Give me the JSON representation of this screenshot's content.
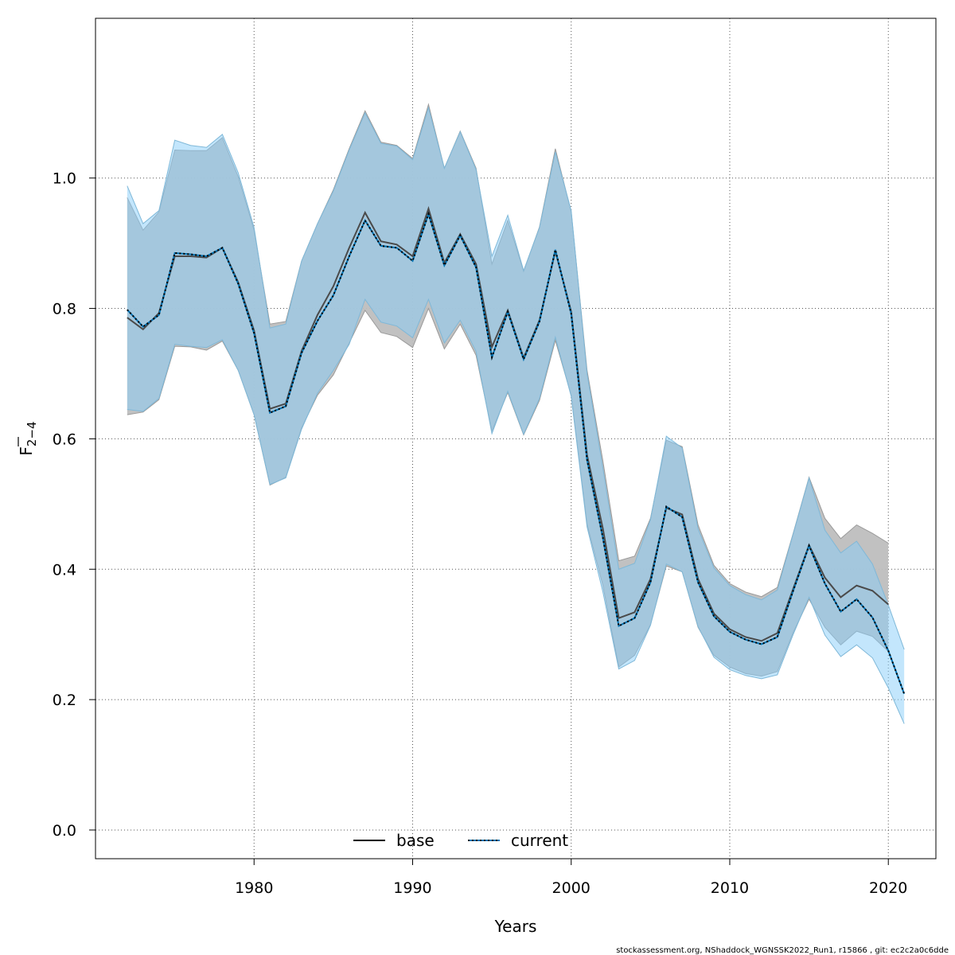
{
  "chart_data": {
    "type": "line",
    "xlabel": "Years",
    "ylabel_main": "F",
    "ylabel_sub": "2−4",
    "xlim": [
      1970,
      2023
    ],
    "ylim": [
      -0.044,
      1.245
    ],
    "xticks": [
      1980,
      1990,
      2000,
      2010,
      2020
    ],
    "yticks": [
      0.0,
      0.2,
      0.4,
      0.6,
      0.8,
      1.0
    ],
    "ytick_labels": [
      "0.0",
      "0.2",
      "0.4",
      "0.6",
      "0.8",
      "1.0"
    ],
    "grid": true,
    "legend_position": "bottom-center",
    "footer": "stockassessment.org, NShaddock_WGNSSK2022_Run1, r15866 , git: ec2c2a0c6dde",
    "colors": {
      "base_band": "#BEBEBE",
      "current_band": "#87CEFA",
      "base_line": "#000000",
      "current_line": "#000000",
      "current_line_under": "#0072B2"
    },
    "series": [
      {
        "name": "base",
        "style": "solid",
        "x": [
          1972,
          1973,
          1974,
          1975,
          1976,
          1977,
          1978,
          1979,
          1980,
          1981,
          1982,
          1983,
          1984,
          1985,
          1986,
          1987,
          1988,
          1989,
          1990,
          1991,
          1992,
          1993,
          1994,
          1995,
          1996,
          1997,
          1998,
          1999,
          2000,
          2001,
          2002,
          2003,
          2004,
          2005,
          2006,
          2007,
          2008,
          2009,
          2010,
          2011,
          2012,
          2013,
          2014,
          2015,
          2016,
          2017,
          2018,
          2019,
          2020
        ],
        "values": [
          0.786,
          0.768,
          0.793,
          0.88,
          0.88,
          0.878,
          0.893,
          0.84,
          0.766,
          0.646,
          0.654,
          0.735,
          0.79,
          0.834,
          0.893,
          0.947,
          0.903,
          0.898,
          0.88,
          0.953,
          0.87,
          0.914,
          0.868,
          0.741,
          0.797,
          0.724,
          0.782,
          0.888,
          0.795,
          0.575,
          0.462,
          0.325,
          0.334,
          0.385,
          0.494,
          0.484,
          0.385,
          0.332,
          0.308,
          0.296,
          0.29,
          0.302,
          0.37,
          0.437,
          0.387,
          0.357,
          0.375,
          0.367,
          0.346
        ],
        "lower": [
          0.637,
          0.641,
          0.66,
          0.742,
          0.741,
          0.736,
          0.75,
          0.705,
          0.637,
          0.529,
          0.541,
          0.617,
          0.667,
          0.698,
          0.747,
          0.797,
          0.763,
          0.757,
          0.74,
          0.8,
          0.738,
          0.776,
          0.728,
          0.612,
          0.671,
          0.606,
          0.659,
          0.751,
          0.667,
          0.469,
          0.375,
          0.25,
          0.268,
          0.315,
          0.405,
          0.396,
          0.311,
          0.268,
          0.25,
          0.24,
          0.236,
          0.243,
          0.303,
          0.354,
          0.311,
          0.284,
          0.305,
          0.297,
          0.274
        ],
        "upper": [
          0.97,
          0.92,
          0.948,
          1.043,
          1.042,
          1.042,
          1.062,
          1.002,
          0.92,
          0.776,
          0.78,
          0.873,
          0.93,
          0.982,
          1.045,
          1.103,
          1.055,
          1.05,
          1.03,
          1.113,
          1.015,
          1.072,
          1.015,
          0.868,
          0.935,
          0.857,
          0.925,
          1.045,
          0.948,
          0.705,
          0.566,
          0.413,
          0.42,
          0.478,
          0.598,
          0.588,
          0.468,
          0.406,
          0.378,
          0.365,
          0.358,
          0.372,
          0.455,
          0.541,
          0.478,
          0.447,
          0.468,
          0.455,
          0.44
        ]
      },
      {
        "name": "current",
        "style": "dotted",
        "x": [
          1972,
          1973,
          1974,
          1975,
          1976,
          1977,
          1978,
          1979,
          1980,
          1981,
          1982,
          1983,
          1984,
          1985,
          1986,
          1987,
          1988,
          1989,
          1990,
          1991,
          1992,
          1993,
          1994,
          1995,
          1996,
          1997,
          1998,
          1999,
          2000,
          2001,
          2002,
          2003,
          2004,
          2005,
          2006,
          2007,
          2008,
          2009,
          2010,
          2011,
          2012,
          2013,
          2014,
          2015,
          2016,
          2017,
          2018,
          2019,
          2020,
          2021
        ],
        "values": [
          0.798,
          0.772,
          0.79,
          0.885,
          0.883,
          0.88,
          0.893,
          0.838,
          0.762,
          0.64,
          0.65,
          0.732,
          0.781,
          0.82,
          0.88,
          0.935,
          0.896,
          0.893,
          0.873,
          0.945,
          0.866,
          0.912,
          0.863,
          0.725,
          0.795,
          0.722,
          0.78,
          0.89,
          0.792,
          0.568,
          0.448,
          0.313,
          0.325,
          0.38,
          0.496,
          0.48,
          0.38,
          0.328,
          0.304,
          0.292,
          0.285,
          0.296,
          0.367,
          0.436,
          0.378,
          0.335,
          0.354,
          0.326,
          0.275,
          0.209
        ],
        "lower": [
          0.645,
          0.642,
          0.662,
          0.745,
          0.742,
          0.74,
          0.752,
          0.705,
          0.637,
          0.53,
          0.54,
          0.615,
          0.67,
          0.705,
          0.745,
          0.814,
          0.779,
          0.773,
          0.755,
          0.814,
          0.747,
          0.782,
          0.734,
          0.608,
          0.673,
          0.607,
          0.662,
          0.756,
          0.665,
          0.465,
          0.365,
          0.247,
          0.26,
          0.314,
          0.408,
          0.396,
          0.312,
          0.265,
          0.246,
          0.237,
          0.232,
          0.238,
          0.3,
          0.357,
          0.299,
          0.266,
          0.284,
          0.264,
          0.218,
          0.163
        ],
        "upper": [
          0.988,
          0.93,
          0.95,
          1.058,
          1.05,
          1.047,
          1.067,
          1.008,
          0.924,
          0.77,
          0.776,
          0.873,
          0.93,
          0.98,
          1.043,
          1.1,
          1.053,
          1.049,
          1.028,
          1.108,
          1.015,
          1.071,
          1.013,
          0.88,
          0.943,
          0.858,
          0.924,
          1.04,
          0.95,
          0.7,
          0.555,
          0.4,
          0.409,
          0.476,
          0.604,
          0.586,
          0.462,
          0.402,
          0.375,
          0.361,
          0.353,
          0.368,
          0.454,
          0.54,
          0.46,
          0.425,
          0.443,
          0.408,
          0.345,
          0.277
        ]
      }
    ]
  }
}
